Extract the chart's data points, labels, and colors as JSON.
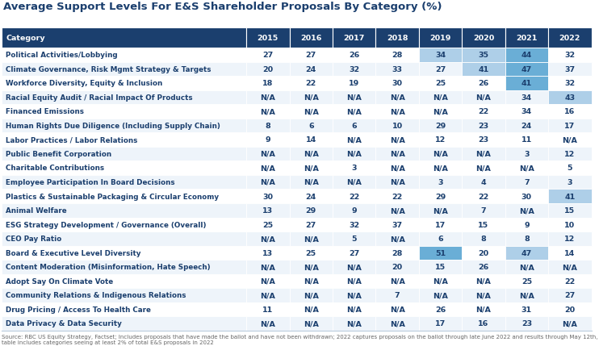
{
  "title": "Average Support Levels For E&S Shareholder Proposals By Category (%)",
  "source": "Source: RBC US Equity Strategy, Factset; Includes proposals that have made the ballot and have not been withdrawn; 2022 captures proposals on the ballot through late June 2022 and results through May 12th, table includes categories seeing at least 2% of total E&S proposals in 2022",
  "columns": [
    "Category",
    "2015",
    "2016",
    "2017",
    "2018",
    "2019",
    "2020",
    "2021",
    "2022"
  ],
  "rows": [
    [
      "Political Activities/Lobbying",
      "27",
      "27",
      "26",
      "28",
      "34",
      "35",
      "44",
      "32"
    ],
    [
      "Climate Governance, Risk Mgmt Strategy & Targets",
      "20",
      "24",
      "32",
      "33",
      "27",
      "41",
      "47",
      "37"
    ],
    [
      "Workforce Diversity, Equity & Inclusion",
      "18",
      "22",
      "19",
      "30",
      "25",
      "26",
      "41",
      "32"
    ],
    [
      "Racial Equity Audit / Racial Impact Of Products",
      "N/A",
      "N/A",
      "N/A",
      "N/A",
      "N/A",
      "N/A",
      "34",
      "43"
    ],
    [
      "Financed Emissions",
      "N/A",
      "N/A",
      "N/A",
      "N/A",
      "N/A",
      "22",
      "34",
      "16"
    ],
    [
      "Human Rights Due Diligence (Including Supply Chain)",
      "8",
      "6",
      "6",
      "10",
      "29",
      "23",
      "24",
      "17"
    ],
    [
      "Labor Practices / Labor Relations",
      "9",
      "14",
      "N/A",
      "N/A",
      "12",
      "23",
      "11",
      "N/A"
    ],
    [
      "Public Benefit Corporation",
      "N/A",
      "N/A",
      "N/A",
      "N/A",
      "N/A",
      "N/A",
      "3",
      "12"
    ],
    [
      "Charitable Contributions",
      "N/A",
      "N/A",
      "3",
      "N/A",
      "N/A",
      "N/A",
      "N/A",
      "5"
    ],
    [
      "Employee Participation In Board Decisions",
      "N/A",
      "N/A",
      "N/A",
      "N/A",
      "3",
      "4",
      "7",
      "3"
    ],
    [
      "Plastics & Sustainable Packaging & Circular Economy",
      "30",
      "24",
      "22",
      "22",
      "29",
      "22",
      "30",
      "41"
    ],
    [
      "Animal Welfare",
      "13",
      "29",
      "9",
      "N/A",
      "N/A",
      "7",
      "N/A",
      "15"
    ],
    [
      "ESG Strategy Development / Governance (Overall)",
      "25",
      "27",
      "32",
      "37",
      "17",
      "15",
      "9",
      "10"
    ],
    [
      "CEO Pay Ratio",
      "N/A",
      "N/A",
      "5",
      "N/A",
      "6",
      "8",
      "8",
      "12"
    ],
    [
      "Board & Executive Level Diversity",
      "13",
      "25",
      "27",
      "28",
      "51",
      "20",
      "47",
      "14"
    ],
    [
      "Content Moderation (Misinformation, Hate Speech)",
      "N/A",
      "N/A",
      "N/A",
      "20",
      "15",
      "26",
      "N/A",
      "N/A"
    ],
    [
      "Adopt Say On Climate Vote",
      "N/A",
      "N/A",
      "N/A",
      "N/A",
      "N/A",
      "N/A",
      "25",
      "22"
    ],
    [
      "Community Relations & Indigenous Relations",
      "N/A",
      "N/A",
      "N/A",
      "7",
      "N/A",
      "N/A",
      "N/A",
      "27"
    ],
    [
      "Drug Pricing / Access To Health Care",
      "11",
      "N/A",
      "N/A",
      "N/A",
      "26",
      "N/A",
      "31",
      "20"
    ],
    [
      "Data Privacy & Data Security",
      "N/A",
      "N/A",
      "N/A",
      "N/A",
      "17",
      "16",
      "23",
      "N/A"
    ]
  ],
  "header_bg": "#1b3f6e",
  "header_text": "#ffffff",
  "row_bg_even": "#ffffff",
  "row_bg_odd": "#eef4fa",
  "highlight_light": "#aecfe8",
  "highlight_dark": "#6aaed6",
  "row_text_color": "#1b3f6e",
  "title_color": "#1b3f6e",
  "source_color": "#666666",
  "highlight_cells": {
    "0,5": "light",
    "0,6": "light",
    "0,7": "dark",
    "1,6": "light",
    "1,7": "dark",
    "2,7": "dark",
    "3,8": "light",
    "10,8": "light",
    "14,5": "dark",
    "14,7": "light"
  }
}
